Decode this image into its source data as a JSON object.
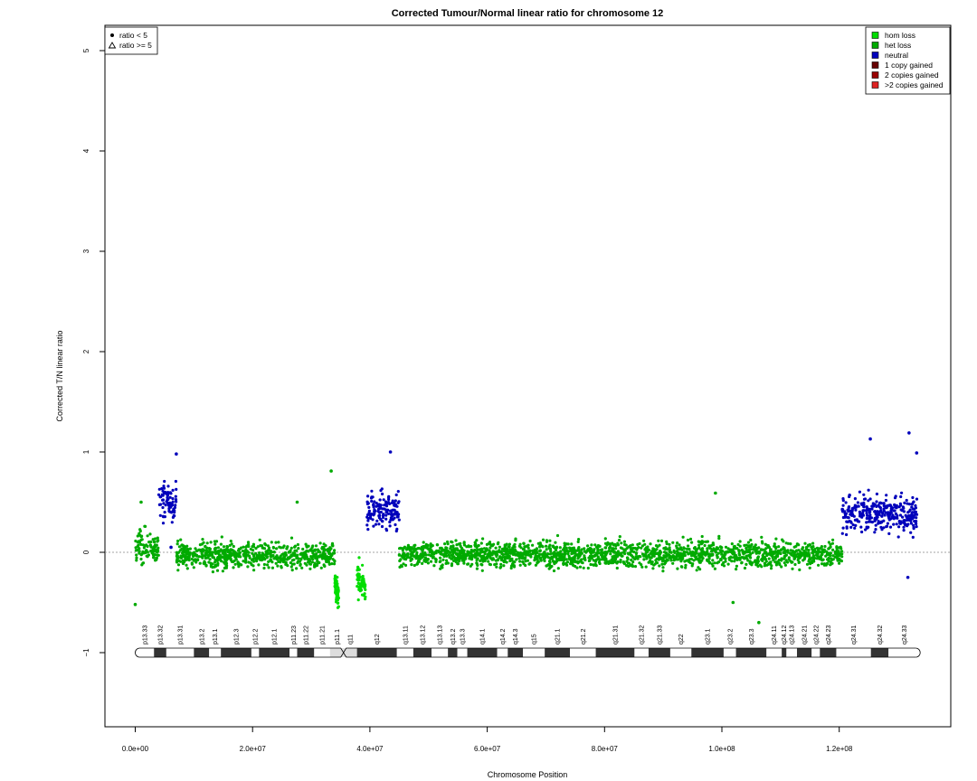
{
  "chart_data": {
    "type": "scatter",
    "title": "Corrected Tumour/Normal linear ratio for chromosome  12",
    "xlabel": "Chromosome Position",
    "ylabel": "Corrected T/N linear ratio",
    "xlim": [
      -5000000,
      138000000
    ],
    "ylim": [
      -1.8,
      5.3
    ],
    "x_ticks": [
      0,
      20000000,
      40000000,
      60000000,
      80000000,
      100000000,
      120000000
    ],
    "x_tick_labels": [
      "0.0e+00",
      "2.0e+07",
      "4.0e+07",
      "6.0e+07",
      "8.0e+07",
      "1.0e+08",
      "1.2e+08"
    ],
    "y_ticks": [
      -1,
      0,
      1,
      2,
      3,
      4,
      5
    ],
    "y_tick_labels": [
      "−1",
      "0",
      "1",
      "2",
      "3",
      "4",
      "5"
    ],
    "reference_line_y": 0,
    "shape_legend": {
      "placement": "top-left",
      "entries": [
        {
          "label": "ratio < 5",
          "symbol": "filled-circle"
        },
        {
          "label": "ratio >= 5",
          "symbol": "open-triangle"
        }
      ]
    },
    "color_legend": {
      "placement": "top-right",
      "entries": [
        {
          "label": "hom loss",
          "color": "#00dd00"
        },
        {
          "label": "het loss",
          "color": "#00aa00"
        },
        {
          "label": "neutral",
          "color": "#0000bb"
        },
        {
          "label": "1 copy gained",
          "color": "#660000"
        },
        {
          "label": "2 copies gained",
          "color": "#990000"
        },
        {
          "label": ">2 copies gained",
          "color": "#dd2222"
        }
      ]
    },
    "series": [
      {
        "name": "neutral",
        "color": "#0000bb",
        "segments": [
          {
            "x_start": 4000000,
            "x_end": 7000000,
            "mean": 0.5,
            "spread": 0.13
          },
          {
            "x_start": 39500000,
            "x_end": 45000000,
            "mean": 0.42,
            "spread": 0.13
          },
          {
            "x_start": 120500000,
            "x_end": 133300000,
            "mean": 0.38,
            "spread": 0.13
          }
        ]
      },
      {
        "name": "het loss",
        "color": "#00aa00",
        "segments": [
          {
            "x_start": 0,
            "x_end": 4000000,
            "mean": 0.05,
            "spread": 0.12
          },
          {
            "x_start": 7000000,
            "x_end": 34000000,
            "mean": -0.03,
            "spread": 0.09
          },
          {
            "x_start": 45000000,
            "x_end": 120500000,
            "mean": -0.02,
            "spread": 0.09
          }
        ]
      },
      {
        "name": "hom loss",
        "color": "#00dd00",
        "segments": [
          {
            "x_start": 34000000,
            "x_end": 34700000,
            "mean": -0.3,
            "spread": 0.1
          },
          {
            "x_start": 37800000,
            "x_end": 39300000,
            "mean": -0.22,
            "spread": 0.12
          }
        ]
      }
    ],
    "ideogram": {
      "y": -1,
      "centromere": 35500000,
      "bands": [
        {
          "name": "p13.33",
          "start": 0,
          "end": 3200000,
          "stain": "white"
        },
        {
          "name": "p13.32",
          "start": 3200000,
          "end": 5300000,
          "stain": "dark"
        },
        {
          "name": "p13.31",
          "start": 5300000,
          "end": 10000000,
          "stain": "white"
        },
        {
          "name": "p13.2",
          "start": 10000000,
          "end": 12600000,
          "stain": "dark"
        },
        {
          "name": "p13.1",
          "start": 12600000,
          "end": 14600000,
          "stain": "white"
        },
        {
          "name": "p12.3",
          "start": 14600000,
          "end": 19800000,
          "stain": "dark"
        },
        {
          "name": "p12.2",
          "start": 19800000,
          "end": 21100000,
          "stain": "white"
        },
        {
          "name": "p12.1",
          "start": 21100000,
          "end": 26300000,
          "stain": "dark"
        },
        {
          "name": "p11.23",
          "start": 26300000,
          "end": 27600000,
          "stain": "white"
        },
        {
          "name": "p11.22",
          "start": 27600000,
          "end": 30500000,
          "stain": "dark"
        },
        {
          "name": "p11.21",
          "start": 30500000,
          "end": 33200000,
          "stain": "white"
        },
        {
          "name": "p11.1",
          "start": 33200000,
          "end": 35500000,
          "stain": "cen"
        },
        {
          "name": "q11",
          "start": 35500000,
          "end": 37800000,
          "stain": "cen"
        },
        {
          "name": "q12",
          "start": 37800000,
          "end": 44600000,
          "stain": "dark"
        },
        {
          "name": "q13.11",
          "start": 44600000,
          "end": 47400000,
          "stain": "white"
        },
        {
          "name": "q13.12",
          "start": 47400000,
          "end": 50500000,
          "stain": "dark"
        },
        {
          "name": "q13.13",
          "start": 50500000,
          "end": 53300000,
          "stain": "white"
        },
        {
          "name": "q13.2",
          "start": 53300000,
          "end": 54900000,
          "stain": "dark"
        },
        {
          "name": "q13.3",
          "start": 54900000,
          "end": 56600000,
          "stain": "white"
        },
        {
          "name": "q14.1",
          "start": 56600000,
          "end": 61700000,
          "stain": "dark"
        },
        {
          "name": "q14.2",
          "start": 61700000,
          "end": 63500000,
          "stain": "white"
        },
        {
          "name": "q14.3",
          "start": 63500000,
          "end": 66100000,
          "stain": "dark"
        },
        {
          "name": "q15",
          "start": 66100000,
          "end": 69800000,
          "stain": "white"
        },
        {
          "name": "q21.1",
          "start": 69800000,
          "end": 74100000,
          "stain": "dark"
        },
        {
          "name": "q21.2",
          "start": 74100000,
          "end": 78500000,
          "stain": "white"
        },
        {
          "name": "q21.31",
          "start": 78500000,
          "end": 85100000,
          "stain": "dark"
        },
        {
          "name": "q21.32",
          "start": 85100000,
          "end": 87500000,
          "stain": "white"
        },
        {
          "name": "q21.33",
          "start": 87500000,
          "end": 91200000,
          "stain": "dark"
        },
        {
          "name": "q22",
          "start": 91200000,
          "end": 94800000,
          "stain": "white"
        },
        {
          "name": "q23.1",
          "start": 94800000,
          "end": 100300000,
          "stain": "dark"
        },
        {
          "name": "q23.2",
          "start": 100300000,
          "end": 102400000,
          "stain": "white"
        },
        {
          "name": "q23.3",
          "start": 102400000,
          "end": 107600000,
          "stain": "dark"
        },
        {
          "name": "q24.11",
          "start": 107600000,
          "end": 110200000,
          "stain": "white"
        },
        {
          "name": "q24.12",
          "start": 110200000,
          "end": 111000000,
          "stain": "dark"
        },
        {
          "name": "q24.13",
          "start": 111000000,
          "end": 112800000,
          "stain": "white"
        },
        {
          "name": "q24.21",
          "start": 112800000,
          "end": 115300000,
          "stain": "dark"
        },
        {
          "name": "q24.22",
          "start": 115300000,
          "end": 116700000,
          "stain": "white"
        },
        {
          "name": "q24.23",
          "start": 116700000,
          "end": 119500000,
          "stain": "dark"
        },
        {
          "name": "q24.31",
          "start": 119500000,
          "end": 125400000,
          "stain": "white"
        },
        {
          "name": "q24.32",
          "start": 125400000,
          "end": 128400000,
          "stain": "dark"
        },
        {
          "name": "q24.33",
          "start": 128400000,
          "end": 133800000,
          "stain": "white"
        }
      ]
    },
    "outliers": [
      {
        "x": 33400000,
        "y": 0.81,
        "color": "#00aa00"
      },
      {
        "x": 27600000,
        "y": 0.5,
        "color": "#00aa00"
      },
      {
        "x": 98900000,
        "y": 0.59,
        "color": "#00aa00"
      },
      {
        "x": 106300000,
        "y": -0.7,
        "color": "#00aa00"
      },
      {
        "x": 101900000,
        "y": -0.5,
        "color": "#00aa00"
      },
      {
        "x": 1000000,
        "y": 0.5,
        "color": "#00aa00"
      },
      {
        "x": 0,
        "y": -0.52,
        "color": "#00aa00"
      },
      {
        "x": 7000000,
        "y": 0.98,
        "color": "#0000bb"
      },
      {
        "x": 43500000,
        "y": 1.0,
        "color": "#0000bb"
      },
      {
        "x": 125300000,
        "y": 1.13,
        "color": "#0000bb"
      },
      {
        "x": 131900000,
        "y": 1.19,
        "color": "#0000bb"
      },
      {
        "x": 133200000,
        "y": 0.99,
        "color": "#0000bb"
      },
      {
        "x": 131700000,
        "y": -0.25,
        "color": "#0000bb"
      },
      {
        "x": 6100000,
        "y": 0.05,
        "color": "#0000bb"
      }
    ]
  }
}
